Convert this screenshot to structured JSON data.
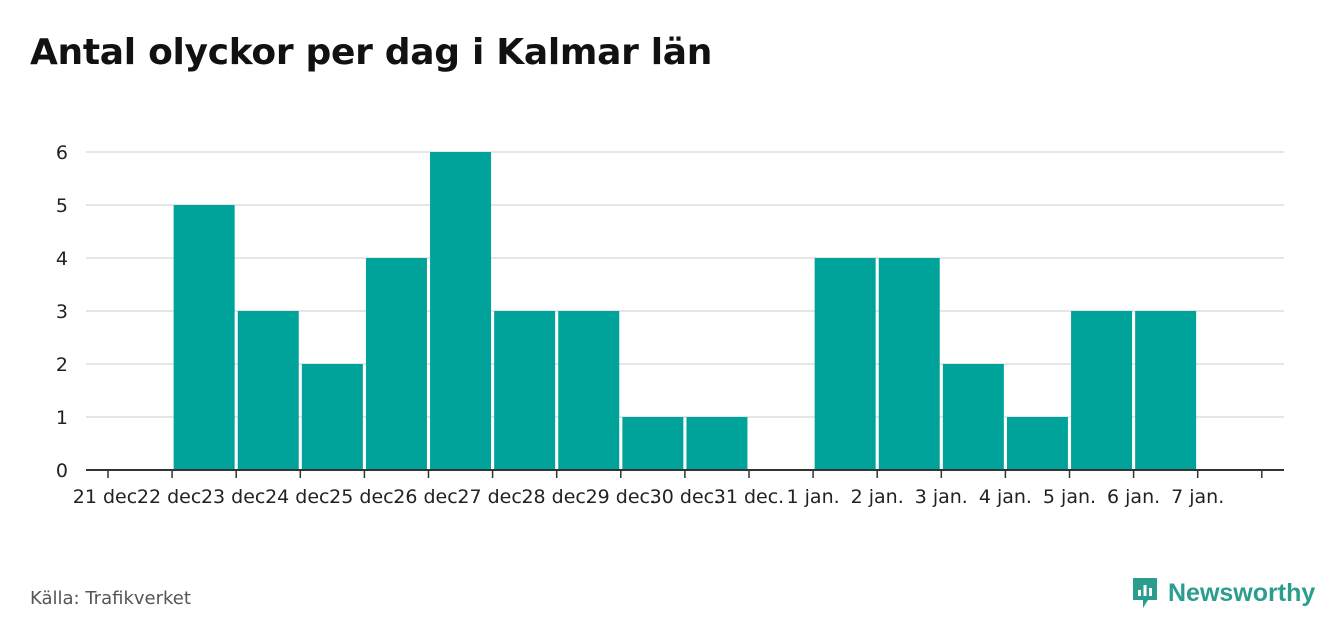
{
  "title": "Antal olyckor per dag i Kalmar län",
  "source": "Källa: Trafikverket",
  "brand": {
    "name": "Newsworthy",
    "icon": "newsworthy-logo-icon",
    "color": "#2a9d8f"
  },
  "colors": {
    "bar": "#00a39a",
    "grid": "#dddddd",
    "axis": "#333333"
  },
  "chart_data": {
    "type": "bar",
    "title": "Antal olyckor per dag i Kalmar län",
    "xlabel": "",
    "ylabel": "",
    "categories": [
      "21 dec.",
      "22 dec.",
      "23 dec.",
      "24 dec.",
      "25 dec.",
      "26 dec.",
      "27 dec.",
      "28 dec.",
      "29 dec.",
      "30 dec.",
      "31 dec.",
      "1 jan.",
      "2 jan.",
      "3 jan.",
      "4 jan.",
      "5 jan.",
      "6 jan.",
      "7 jan."
    ],
    "values": [
      null,
      5,
      3,
      2,
      4,
      6,
      3,
      3,
      1,
      1,
      null,
      4,
      4,
      2,
      1,
      3,
      3,
      null
    ],
    "ylim": [
      0,
      6
    ],
    "yticks": [
      0,
      1,
      2,
      3,
      4,
      5,
      6
    ],
    "grid": true,
    "legend": "none"
  }
}
